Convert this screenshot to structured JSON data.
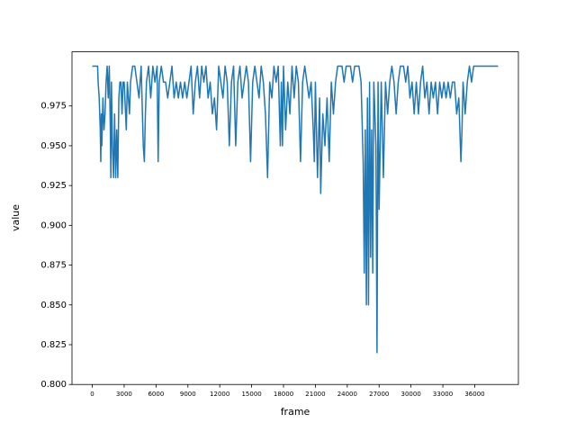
{
  "chart_data": {
    "type": "line",
    "xlabel": "frame",
    "ylabel": "value",
    "color": "#1f77b4",
    "x": [
      0,
      500,
      550,
      650,
      700,
      750,
      800,
      850,
      900,
      1000,
      1100,
      1200,
      1300,
      1400,
      1500,
      1600,
      1700,
      1750,
      1800,
      1900,
      2000,
      2100,
      2200,
      2300,
      2400,
      2500,
      2600,
      2700,
      2800,
      2900,
      3000,
      3200,
      3300,
      3500,
      3600,
      3800,
      4000,
      4200,
      4400,
      4600,
      4800,
      4900,
      5000,
      5100,
      5300,
      5500,
      5700,
      5900,
      6100,
      6200,
      6300,
      6500,
      6700,
      6900,
      7100,
      7300,
      7500,
      7700,
      7900,
      8100,
      8300,
      8500,
      8700,
      8900,
      9100,
      9300,
      9500,
      9700,
      9900,
      10100,
      10300,
      10500,
      10700,
      10900,
      11100,
      11300,
      11500,
      11700,
      11900,
      12100,
      12300,
      12500,
      12700,
      12900,
      13100,
      13300,
      13500,
      13700,
      13900,
      14100,
      14300,
      14500,
      14700,
      14900,
      15100,
      15300,
      15500,
      15700,
      15900,
      16100,
      16300,
      16500,
      16700,
      16900,
      17100,
      17300,
      17500,
      17700,
      17800,
      17900,
      18000,
      18200,
      18400,
      18600,
      18800,
      19000,
      19200,
      19400,
      19600,
      19800,
      20000,
      20200,
      20400,
      20600,
      20800,
      20900,
      21000,
      21200,
      21400,
      21500,
      21700,
      21900,
      22100,
      22300,
      22500,
      22700,
      22900,
      23100,
      23500,
      23700,
      23900,
      24300,
      24500,
      24700,
      25100,
      25300,
      25500,
      25600,
      25700,
      25800,
      25900,
      26000,
      26100,
      26200,
      26300,
      26400,
      26500,
      26700,
      26800,
      26900,
      27000,
      27200,
      27400,
      27600,
      27800,
      28000,
      28200,
      28400,
      28600,
      28800,
      29000,
      29300,
      29500,
      29700,
      29900,
      30100,
      30300,
      30500,
      30700,
      30900,
      31100,
      31300,
      31500,
      31700,
      31900,
      32100,
      32300,
      32500,
      32700,
      32900,
      33100,
      33300,
      33500,
      33700,
      33900,
      34100,
      34300,
      34500,
      34700,
      34800,
      34900,
      35100,
      35300,
      35500,
      35700,
      35900,
      36200,
      38200
    ],
    "values": [
      1.0,
      1.0,
      0.99,
      0.98,
      0.97,
      0.96,
      0.94,
      0.97,
      0.95,
      0.98,
      0.96,
      0.97,
      0.99,
      1.0,
      0.98,
      1.0,
      0.96,
      0.93,
      0.99,
      0.95,
      0.93,
      0.97,
      0.93,
      0.96,
      0.93,
      0.98,
      0.99,
      0.99,
      0.97,
      0.99,
      0.99,
      0.96,
      0.99,
      0.97,
      0.99,
      1.0,
      1.0,
      0.99,
      0.98,
      1.0,
      0.95,
      0.94,
      0.97,
      0.99,
      1.0,
      0.98,
      1.0,
      0.99,
      1.0,
      0.94,
      0.99,
      1.0,
      0.99,
      0.99,
      0.98,
      0.99,
      1.0,
      0.98,
      0.99,
      0.98,
      0.99,
      0.98,
      0.99,
      0.98,
      0.99,
      1.0,
      0.97,
      0.99,
      1.0,
      0.98,
      1.0,
      0.99,
      1.0,
      0.98,
      0.99,
      0.97,
      0.98,
      0.96,
      1.0,
      0.99,
      0.98,
      1.0,
      0.99,
      0.95,
      0.99,
      1.0,
      0.95,
      0.99,
      1.0,
      0.98,
      0.99,
      1.0,
      0.99,
      0.94,
      0.99,
      1.0,
      0.99,
      0.98,
      1.0,
      0.99,
      0.97,
      0.93,
      0.99,
      0.98,
      1.0,
      0.99,
      1.0,
      0.95,
      0.99,
      0.95,
      1.0,
      0.96,
      0.99,
      0.97,
      1.0,
      0.98,
      1.0,
      0.99,
      0.94,
      0.99,
      1.0,
      0.99,
      0.98,
      0.99,
      0.96,
      0.94,
      0.99,
      0.93,
      0.98,
      0.92,
      0.97,
      0.95,
      0.98,
      0.94,
      0.99,
      0.97,
      0.99,
      1.0,
      1.0,
      0.99,
      1.0,
      1.0,
      0.99,
      1.0,
      1.0,
      0.99,
      0.94,
      0.87,
      0.96,
      0.85,
      0.98,
      0.85,
      0.99,
      0.88,
      0.96,
      0.87,
      0.99,
      0.95,
      0.82,
      0.99,
      0.91,
      0.99,
      0.93,
      0.99,
      0.97,
      0.99,
      1.0,
      0.99,
      0.97,
      0.99,
      1.0,
      1.0,
      0.99,
      1.0,
      0.98,
      0.99,
      0.97,
      0.99,
      0.97,
      0.99,
      1.0,
      0.98,
      0.99,
      0.97,
      0.99,
      0.98,
      0.99,
      0.97,
      0.99,
      0.98,
      0.99,
      0.98,
      0.99,
      0.98,
      0.99,
      0.99,
      0.97,
      0.98,
      0.94,
      0.96,
      0.99,
      0.97,
      0.99,
      1.0,
      0.99,
      1.0,
      1.0,
      1.0
    ],
    "xlim": [
      -1910,
      40110
    ],
    "ylim": [
      0.8,
      1.009
    ],
    "xticks": [
      0,
      3000,
      6000,
      9000,
      12000,
      15000,
      18000,
      21000,
      24000,
      27000,
      30000,
      33000,
      36000
    ],
    "yticks": [
      {
        "value": 0.8,
        "label": "0.800"
      },
      0.825,
      {
        "value": 0.85,
        "label": "0.850"
      },
      0.875,
      {
        "value": 0.9,
        "label": "0.900"
      },
      0.925,
      {
        "value": 0.95,
        "label": "0.950"
      },
      0.975
    ]
  }
}
